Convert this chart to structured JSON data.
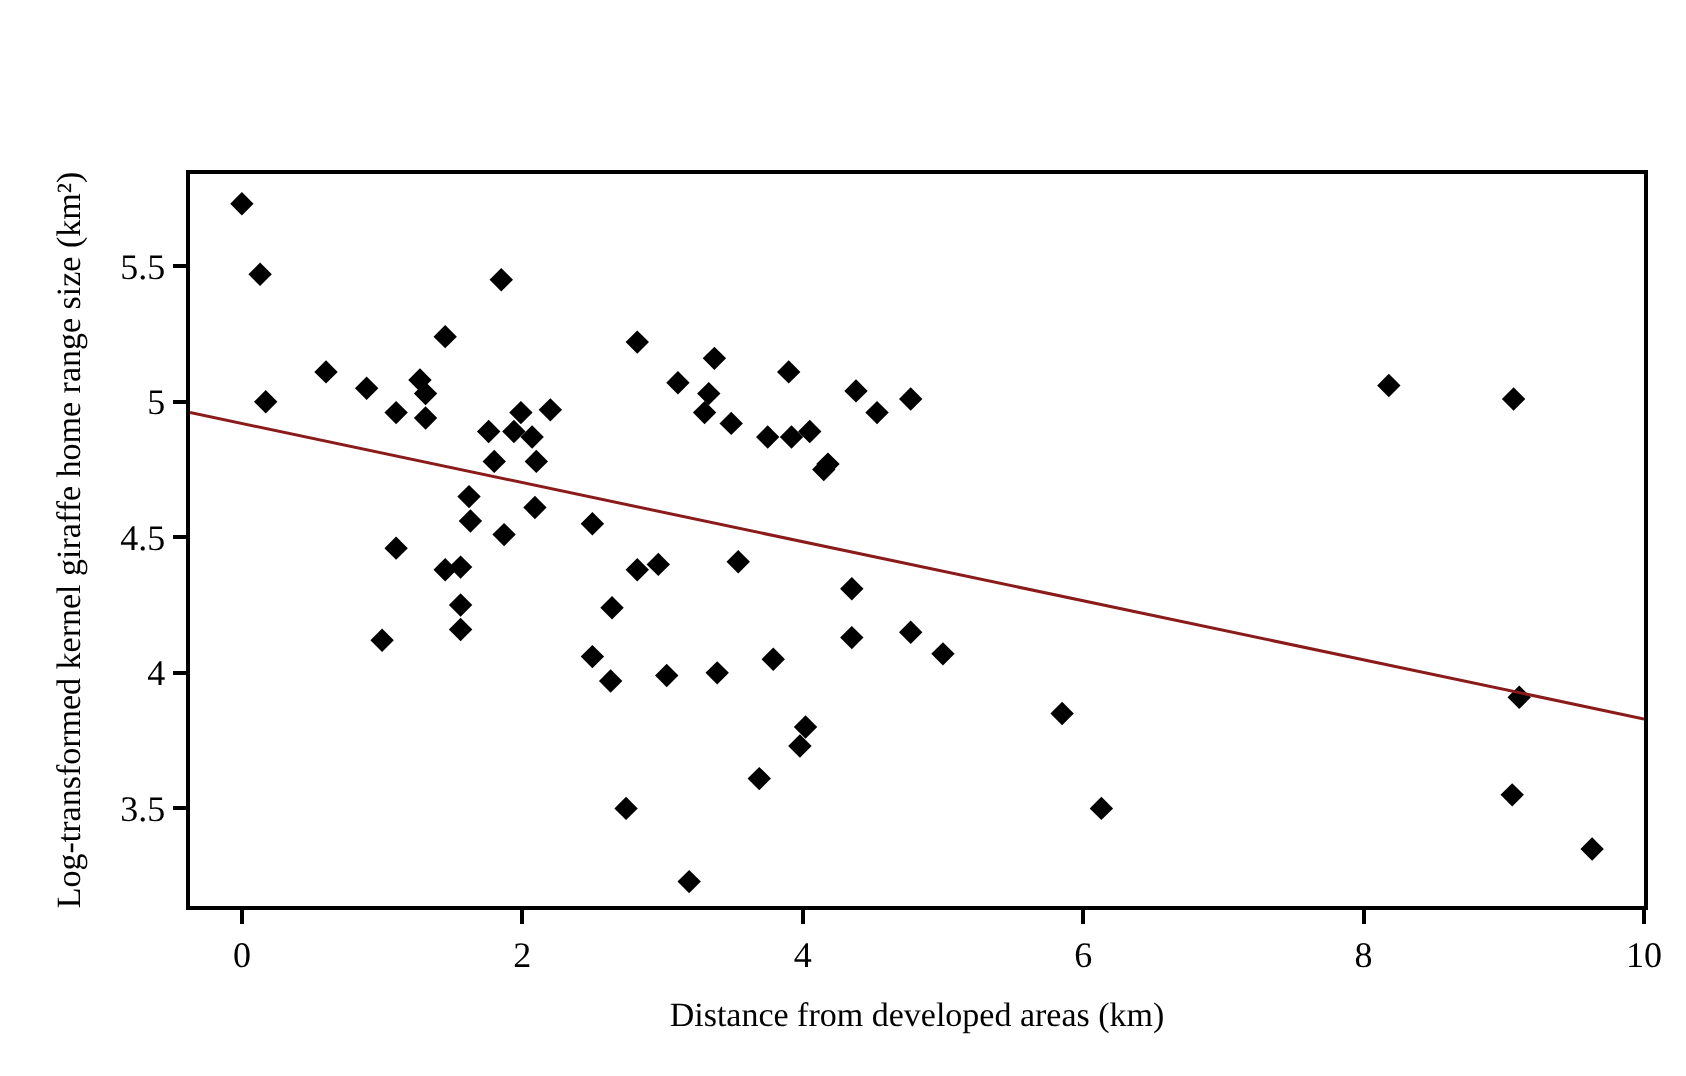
{
  "chart_data": {
    "type": "scatter",
    "xlabel": "Distance from developed areas (km)",
    "ylabel": "Log-transformed kernel giraffe home range size (km²)",
    "xlim": [
      -0.37,
      10
    ],
    "xticks": [
      0,
      2,
      4,
      6,
      8,
      10
    ],
    "ylim": [
      3.14,
      5.84
    ],
    "yticks": [
      3.5,
      4,
      4.5,
      5,
      5.5
    ],
    "marker": "diamond",
    "series": [
      {
        "color": "#000000",
        "x": [
          0,
          0.13,
          0.17,
          0.6,
          0.89,
          1.1,
          1.0,
          1.1,
          1.27,
          1.31,
          1.31,
          1.45,
          1.45,
          1.56,
          1.56,
          1.56,
          1.62,
          1.63,
          1.76,
          1.8,
          1.85,
          1.87,
          1.94,
          1.99,
          2.07,
          2.1,
          2.09,
          2.2,
          2.5,
          2.5,
          2.63,
          2.64,
          2.74,
          2.82,
          2.82,
          2.97,
          3.03,
          3.19,
          3.11,
          3.37,
          3.33,
          3.3,
          3.49,
          3.54,
          3.39,
          3.69,
          3.75,
          3.79,
          3.9,
          3.92,
          4.05,
          4.02,
          3.98,
          4.15,
          4.18,
          4.38,
          4.53,
          4.35,
          4.35,
          4.77,
          4.77,
          5.0,
          5.85,
          6.13,
          8.18,
          9.07,
          9.11,
          9.06,
          9.63
        ],
        "values": [
          5.73,
          5.47,
          5.0,
          5.11,
          5.05,
          4.96,
          4.12,
          4.46,
          5.08,
          5.03,
          4.94,
          5.24,
          4.38,
          4.39,
          4.25,
          4.16,
          4.65,
          4.56,
          4.89,
          4.78,
          5.45,
          4.51,
          4.89,
          4.96,
          4.87,
          4.78,
          4.61,
          4.97,
          4.55,
          4.06,
          3.97,
          4.24,
          3.5,
          5.22,
          4.38,
          4.4,
          3.99,
          3.23,
          5.07,
          5.16,
          5.03,
          4.96,
          4.92,
          4.41,
          4.0,
          3.61,
          4.87,
          4.05,
          5.11,
          4.87,
          4.89,
          3.8,
          3.73,
          4.75,
          4.77,
          5.04,
          4.96,
          4.31,
          4.13,
          5.01,
          4.15,
          4.07,
          3.85,
          3.5,
          5.06,
          5.01,
          3.91,
          3.55,
          3.35
        ]
      },
      {
        "type": "line",
        "color": "#8b1a1a",
        "marker": "none",
        "line_style": "solid",
        "x": [
          -0.37,
          10
        ],
        "values": [
          4.96,
          3.83
        ]
      }
    ]
  }
}
